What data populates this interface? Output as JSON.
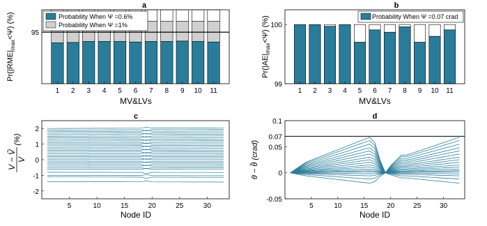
{
  "chart_data": [
    {
      "panel": "a",
      "type": "bar",
      "title": "a",
      "xlabel": "MV&LVs",
      "ylabel": "Pr(|RME|max<Ψ) (%)",
      "ylabel_parts": {
        "pre": "Pr(|RME|",
        "sub": "max",
        "post": "<Ψ) (%)"
      },
      "categories": [
        "1",
        "2",
        "3",
        "4",
        "5",
        "6",
        "7",
        "8",
        "9",
        "10",
        "11"
      ],
      "ylim": [
        83.5,
        100
      ],
      "yticks": [
        95
      ],
      "reference_line": 95,
      "legend_position": "top",
      "series": [
        {
          "name": "Probability When  Ψ =0.6%",
          "color": "#2a7d9a",
          "values": [
            92.6,
            92.7,
            92.9,
            92.9,
            92.9,
            92.8,
            92.9,
            92.9,
            93.0,
            92.9,
            92.8
          ]
        },
        {
          "name": "Probability When  Ψ =1%",
          "color": "#d0d0d0",
          "values": [
            97.3,
            97.4,
            97.4,
            97.4,
            97.4,
            97.4,
            97.4,
            97.4,
            97.4,
            97.4,
            97.4
          ]
        }
      ]
    },
    {
      "panel": "b",
      "type": "bar",
      "title": "b",
      "xlabel": "MV&LVs",
      "ylabel": "Pr(|AE|max<Ψ) (%)",
      "ylabel_parts": {
        "pre": "Pr(|AE|",
        "sub": "max",
        "post": "<Ψ) (%)"
      },
      "categories": [
        "1",
        "2",
        "3",
        "4",
        "5",
        "6",
        "7",
        "8",
        "9",
        "10",
        "11"
      ],
      "ylim": [
        99,
        100.25
      ],
      "yticks": [
        99,
        100
      ],
      "legend_position": "top",
      "series": [
        {
          "name": "Probability When  Ψ =0.07 crad",
          "color": "#2a7d9a",
          "values": [
            100,
            100,
            99.97,
            100,
            99.7,
            99.91,
            99.87,
            99.96,
            99.7,
            99.8,
            99.91
          ]
        }
      ]
    },
    {
      "panel": "c",
      "type": "line",
      "title": "c",
      "xlabel": "Node ID",
      "ylabel": "(V − Ṽ)/V (%)",
      "xlim": [
        0,
        34
      ],
      "ylim": [
        -2.5,
        2.5
      ],
      "xticks": [
        5,
        10,
        15,
        20,
        25,
        30
      ],
      "yticks": [
        -2,
        -1,
        0,
        1,
        2
      ],
      "color": "#2a7d9a",
      "breakpoint": 19,
      "series_levels": [
        2.0,
        1.9,
        1.8,
        1.7,
        1.6,
        1.5,
        1.4,
        1.3,
        1.2,
        1.1,
        1.0,
        0.9,
        0.8,
        0.7,
        0.6,
        0.5,
        0.4,
        0.3,
        0.2,
        0.1,
        0.0,
        -0.1,
        -0.2,
        -0.3,
        -0.4,
        -0.5,
        -0.6,
        -0.8,
        -1.0,
        -1.1,
        -1.4
      ],
      "notes": "≈30 nearly flat lines, one per level, with a small kink near node 19"
    },
    {
      "panel": "d",
      "type": "line",
      "title": "d",
      "xlabel": "Node ID",
      "ylabel": "θ − θ̃ (crad)",
      "xlim": [
        0,
        34
      ],
      "ylim": [
        -0.05,
        0.1
      ],
      "xticks": [
        5,
        10,
        15,
        20,
        25,
        30
      ],
      "yticks": [
        -0.05,
        0,
        0.05,
        0.07,
        0.1
      ],
      "ytick_labels": [
        "-0.05",
        "0",
        "0.05",
        "0.07",
        "0.1"
      ],
      "reference_line": 0.07,
      "color": "#2a7d9a",
      "series_peaks": [
        0.068,
        0.062,
        0.055,
        0.048,
        0.042,
        0.036,
        0.03,
        0.025,
        0.02,
        0.015,
        0.011,
        0.007,
        0.004,
        0.0015,
        -0.002,
        -0.006,
        -0.012,
        -0.02
      ],
      "notes": "angle error grows from node 1, dips to ~0 at node 19, rises again toward node 33"
    }
  ]
}
